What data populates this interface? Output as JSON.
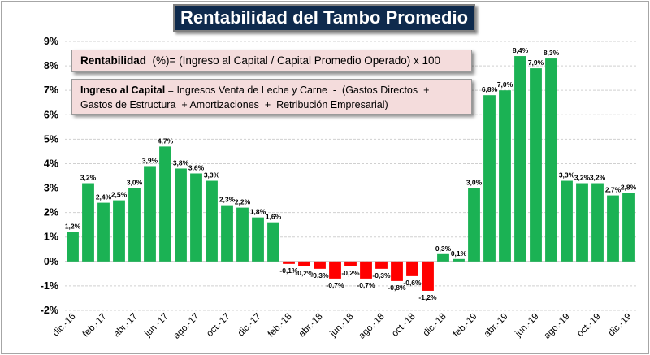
{
  "chart_data": {
    "type": "bar",
    "title": "Rentabilidad del Tambo Promedio",
    "ylim": [
      -2,
      9
    ],
    "y_ticks": [
      "-2%",
      "-1%",
      "0%",
      "1%",
      "2%",
      "3%",
      "4%",
      "5%",
      "6%",
      "7%",
      "8%",
      "9%"
    ],
    "grid": true,
    "x_tick_labels": [
      "dic.-16",
      "feb.-17",
      "abr.-17",
      "jun.-17",
      "ago.-17",
      "oct.-17",
      "dic.-17",
      "feb.-18",
      "abr.-18",
      "jun.-18",
      "ago.-18",
      "oct.-18",
      "dic.-18",
      "feb.-19",
      "abr.-19",
      "jun.-19",
      "ago.-19",
      "oct.-19",
      "dic.-19"
    ],
    "values": [
      1.2,
      3.2,
      2.4,
      2.5,
      3.0,
      3.9,
      4.7,
      3.8,
      3.6,
      3.3,
      2.3,
      2.2,
      1.8,
      1.6,
      -0.1,
      -0.2,
      -0.3,
      -0.7,
      -0.2,
      -0.7,
      -0.3,
      -0.8,
      -0.6,
      -1.2,
      0.3,
      0.1,
      3.0,
      6.8,
      7.0,
      8.4,
      7.9,
      8.3,
      3.3,
      3.2,
      3.2,
      2.7,
      2.8
    ],
    "data_labels": [
      "1,2%",
      "3,2%",
      "2,4%",
      "2,5%",
      "3,0%",
      "3,9%",
      "4,7%",
      "3,8%",
      "3,6%",
      "3,3%",
      "2,3%",
      "2,2%",
      "1,8%",
      "1,6%",
      "-0,1%",
      "-0,2%",
      "-0,3%",
      "-0,7%",
      "-0,2%",
      "-0,7%",
      "-0,3%",
      "-0,8%",
      "-0,6%",
      "-1,2%",
      "0,3%",
      "0,1%",
      "3,0%",
      "6,8%",
      "7,0%",
      "8,4%",
      "7,9%",
      "8,3%",
      "3,3%",
      "3,2%",
      "3,2%",
      "2,7%",
      "2,8%"
    ],
    "colors": {
      "positive": "#1bb254",
      "negative": "#ff0000"
    }
  },
  "notes": {
    "formula": {
      "bold": "Rentabilidad",
      "text": "  (%)= (Ingreso al Capital / Capital Promedio Operado) x 100"
    },
    "definition": {
      "bold": "Ingreso al Capital",
      "line1": " = Ingresos Venta de Leche y Carne  -  (Gastos Directos  +",
      "line2": "Gastos de Estructura  + Amortizaciones  +  Retribución Empresarial)"
    }
  }
}
